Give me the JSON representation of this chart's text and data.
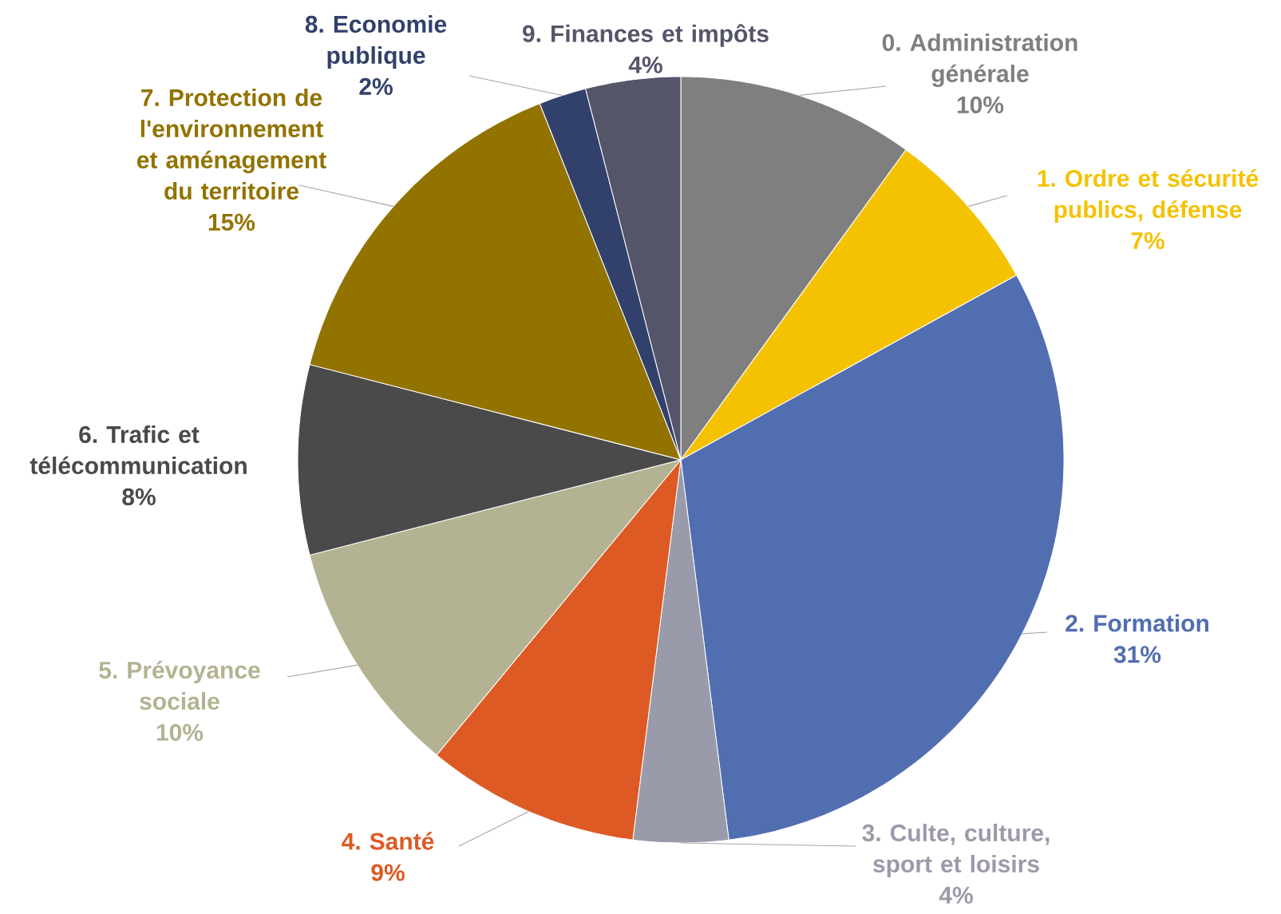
{
  "chart_data": {
    "type": "pie",
    "categories": [
      "0. Administration générale",
      "1. Ordre et sécurité publics, défense",
      "2. Formation",
      "3. Culte, culture, sport et loisirs",
      "4. Santé",
      "5. Prévoyance sociale",
      "6. Trafic et télécommunication",
      "7. Protection de l'environnement et aménagement du territoire",
      "8. Economie publique",
      "9. Finances et impôts"
    ],
    "values": [
      10,
      7,
      31,
      4,
      9,
      10,
      8,
      15,
      2,
      4
    ],
    "value_labels": [
      "10%",
      "7%",
      "31%",
      "4%",
      "9%",
      "10%",
      "8%",
      "15%",
      "2%",
      "4%"
    ],
    "colors": [
      "#7f7f7f",
      "#f4c200",
      "#516eb0",
      "#999aaa",
      "#dd5a24",
      "#b3b393",
      "#4a4a4a",
      "#927300",
      "#31416b",
      "#545569"
    ]
  }
}
